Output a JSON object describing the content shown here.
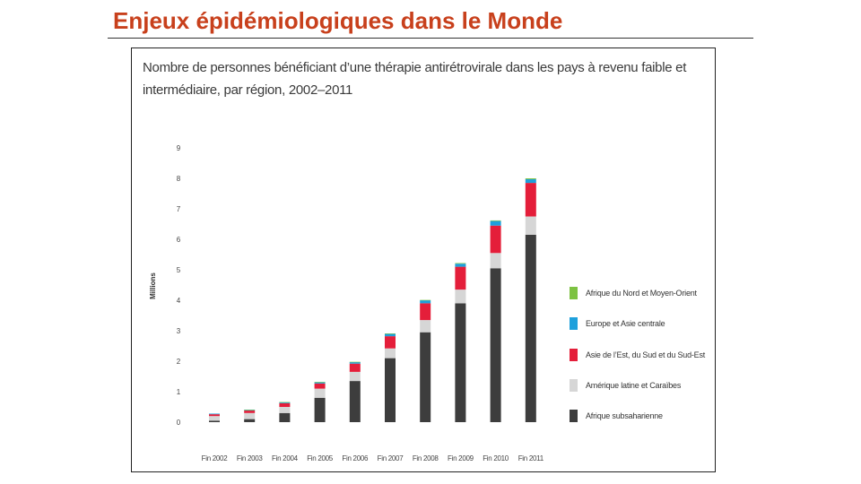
{
  "slide": {
    "title": "Enjeux épidémiologiques dans le Monde"
  },
  "colors": {
    "title": "#c8401c",
    "series": [
      "#3d3d3d",
      "#d6d6d6",
      "#e41e3a",
      "#1ea0dc",
      "#7dc242"
    ]
  },
  "chart_data": {
    "type": "bar",
    "stacked": true,
    "title": "Nombre de personnes bénéficiant d’une thérapie antirétrovirale dans les pays à revenu faible et intermédiaire, par région, 2002–2011",
    "xlabel": "",
    "ylabel": "Millions",
    "ylim": [
      0,
      9
    ],
    "yticks": [
      "0",
      "1",
      "2",
      "3",
      "4",
      "5",
      "6",
      "7",
      "8",
      "9"
    ],
    "grid": false,
    "legend_position": "right",
    "categories": [
      "Fin 2002",
      "Fin 2003",
      "Fin 2004",
      "Fin 2005",
      "Fin 2006",
      "Fin 2007",
      "Fin 2008",
      "Fin 2009",
      "Fin 2010",
      "Fin 2011"
    ],
    "series": [
      {
        "name": "Afrique subsaharienne",
        "values": [
          0.05,
          0.1,
          0.3,
          0.8,
          1.35,
          2.1,
          2.95,
          3.9,
          5.05,
          6.15
        ]
      },
      {
        "name": "Amérique latine et Caraïbes",
        "values": [
          0.15,
          0.2,
          0.2,
          0.3,
          0.3,
          0.32,
          0.4,
          0.45,
          0.5,
          0.6
        ]
      },
      {
        "name": "Asie de l’Est, du Sud et du Sud-Est",
        "values": [
          0.06,
          0.08,
          0.12,
          0.17,
          0.27,
          0.4,
          0.55,
          0.75,
          0.9,
          1.1
        ]
      },
      {
        "name": "Europe et Asie centrale",
        "values": [
          0.02,
          0.02,
          0.03,
          0.04,
          0.05,
          0.08,
          0.1,
          0.1,
          0.15,
          0.12
        ]
      },
      {
        "name": "Afrique du Nord et Moyen-Orient",
        "values": [
          0.0,
          0.01,
          0.01,
          0.01,
          0.01,
          0.01,
          0.01,
          0.02,
          0.02,
          0.03
        ]
      }
    ],
    "legend": [
      "Afrique du Nord et Moyen-Orient",
      "Europe et Asie centrale",
      "Asie de l’Est, du Sud et du Sud-Est",
      "Amérique latine et Caraïbes",
      "Afrique subsaharienne"
    ]
  }
}
